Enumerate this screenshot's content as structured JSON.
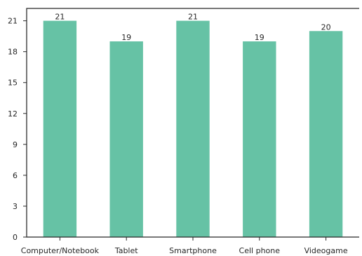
{
  "chart_data": {
    "type": "bar",
    "categories": [
      "Computer/Notebook",
      "Tablet",
      "Smartphone",
      "Cell phone",
      "Videogame"
    ],
    "values": [
      21,
      19,
      21,
      19,
      20
    ],
    "data_labels": [
      "21",
      "19",
      "21",
      "19",
      "20"
    ],
    "yticks": [
      "0",
      "3",
      "6",
      "9",
      "12",
      "15",
      "18",
      "21"
    ],
    "ylim": [
      0,
      22.2
    ],
    "title": "",
    "xlabel": "",
    "ylabel": "",
    "grid": false,
    "legend": "none",
    "bar_color": "#66c2a5"
  }
}
